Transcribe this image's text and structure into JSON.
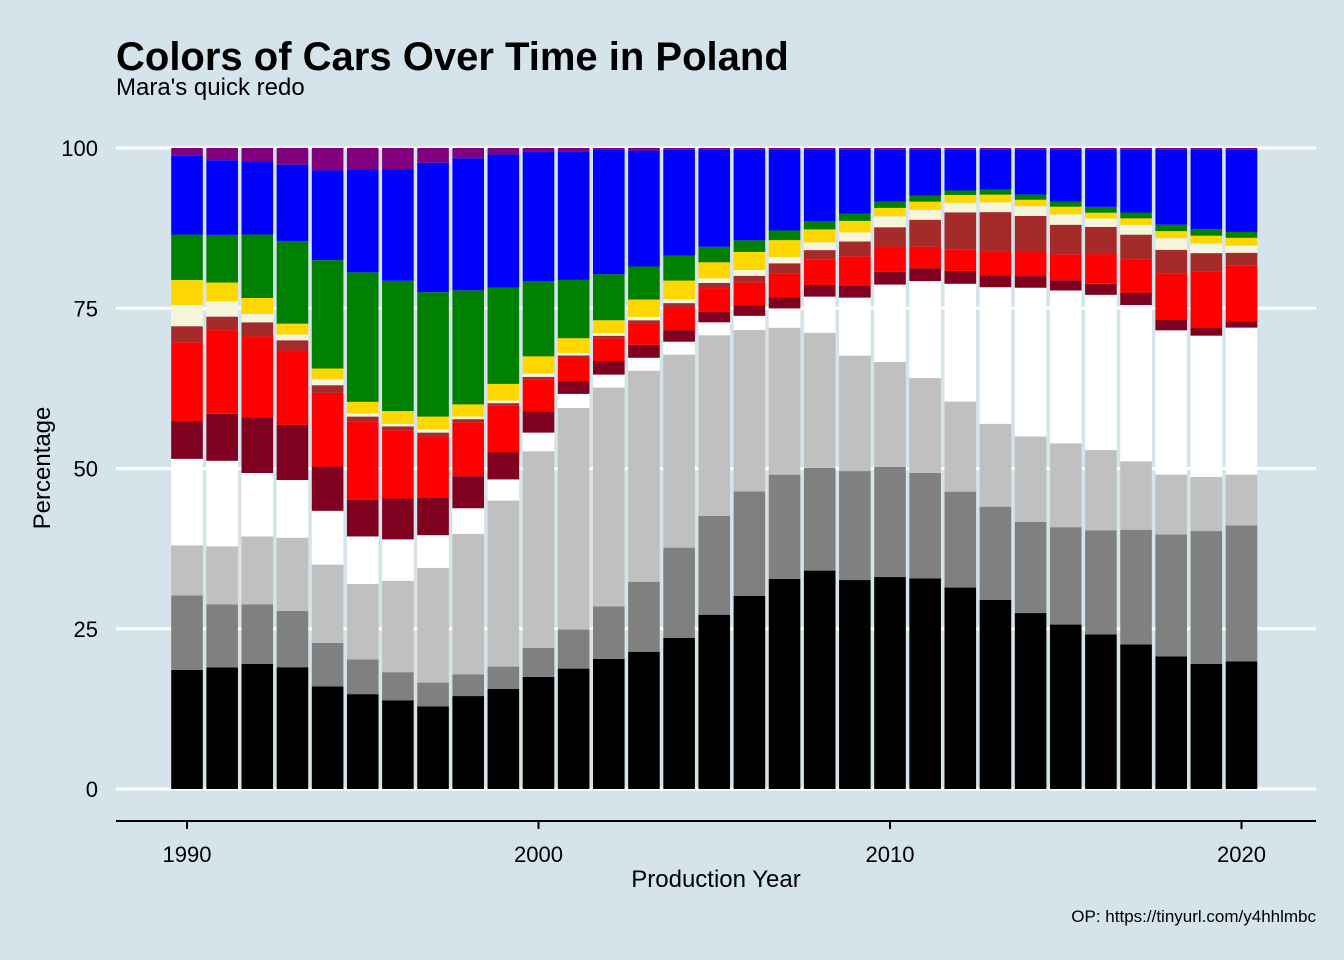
{
  "chart_data": {
    "type": "bar",
    "stacked": true,
    "title": "Colors of Cars Over Time in Poland",
    "subtitle": "Mara's quick redo",
    "xlabel": "Production Year",
    "ylabel": "Percentage",
    "caption": "OP: https://tinyurl.com/y4hhlmbc",
    "xlim": [
      1989,
      2021
    ],
    "ylim": [
      0,
      100
    ],
    "xticks": [
      1990,
      2000,
      2010,
      2020
    ],
    "yticks": [
      0,
      25,
      50,
      75,
      100
    ],
    "grid": "horizontal",
    "legend": "none",
    "categories": [
      1990,
      1991,
      1992,
      1993,
      1994,
      1995,
      1996,
      1997,
      1998,
      1999,
      2000,
      2001,
      2002,
      2003,
      2004,
      2005,
      2006,
      2007,
      2008,
      2009,
      2010,
      2011,
      2012,
      2013,
      2014,
      2015,
      2016,
      2017,
      2018,
      2019,
      2020
    ],
    "series": [
      {
        "color": "#000000",
        "values": [
          18.6,
          18.9,
          19.5,
          19.0,
          16.0,
          14.8,
          13.9,
          12.9,
          14.5,
          15.6,
          17.5,
          18.8,
          20.1,
          21.2,
          23.5,
          27.0,
          29.9,
          32.6,
          33.8,
          32.4,
          32.9,
          32.6,
          31.3,
          29.2,
          27.2,
          25.5,
          23.9,
          22.2,
          20.6,
          19.4,
          19.6
        ]
      },
      {
        "color": "#808080",
        "values": [
          11.6,
          9.8,
          9.3,
          8.8,
          6.8,
          5.4,
          4.4,
          3.7,
          3.4,
          3.5,
          4.5,
          6.1,
          8.1,
          10.8,
          14.0,
          15.3,
          16.2,
          16.2,
          15.9,
          16.9,
          17.1,
          16.3,
          14.9,
          14.4,
          14.1,
          15.1,
          16.1,
          17.6,
          18.9,
          20.6,
          20.9
        ]
      },
      {
        "color": "#c0c0c0",
        "values": [
          7.8,
          9.0,
          10.6,
          11.4,
          12.2,
          11.8,
          14.3,
          17.9,
          21.9,
          25.9,
          30.7,
          34.6,
          33.8,
          32.6,
          30.0,
          28.0,
          25.0,
          22.8,
          20.9,
          17.9,
          16.3,
          14.7,
          14.0,
          12.8,
          13.2,
          13.0,
          12.4,
          10.5,
          9.3,
          8.4,
          7.8
        ]
      },
      {
        "color": "#ffffff",
        "values": [
          13.5,
          13.3,
          9.9,
          9.0,
          8.4,
          7.4,
          6.5,
          5.1,
          4.0,
          3.3,
          2.9,
          2.2,
          2.0,
          2.0,
          2.0,
          2.0,
          2.2,
          3.0,
          5.6,
          9.0,
          12.0,
          15.0,
          18.3,
          21.1,
          23.0,
          23.7,
          24.0,
          24.0,
          22.4,
          21.9,
          22.6
        ]
      },
      {
        "color": "#800020",
        "values": [
          5.9,
          7.3,
          8.7,
          8.6,
          6.9,
          5.7,
          6.4,
          5.8,
          5.0,
          4.2,
          3.3,
          2.0,
          2.1,
          2.0,
          1.8,
          1.6,
          1.6,
          1.7,
          1.8,
          1.8,
          2.0,
          2.0,
          2.0,
          1.8,
          1.8,
          1.6,
          1.7,
          1.9,
          1.7,
          1.3,
          1.0
        ]
      },
      {
        "color": "#ff0000",
        "values": [
          12.3,
          13.0,
          12.6,
          11.6,
          11.5,
          12.2,
          10.7,
          9.6,
          8.4,
          7.3,
          5.0,
          3.6,
          3.5,
          3.3,
          3.6,
          3.7,
          3.6,
          3.7,
          3.9,
          4.6,
          3.9,
          3.3,
          3.3,
          3.7,
          3.8,
          4.0,
          4.6,
          5.1,
          7.1,
          8.7,
          8.5
        ]
      },
      {
        "color": "#a52a2a",
        "values": [
          2.5,
          2.1,
          2.2,
          1.6,
          1.2,
          0.8,
          0.6,
          0.6,
          0.5,
          0.4,
          0.4,
          0.4,
          0.4,
          0.5,
          0.6,
          0.8,
          1.0,
          1.6,
          1.5,
          2.3,
          3.0,
          4.2,
          5.8,
          6.1,
          5.5,
          4.6,
          4.2,
          3.8,
          3.7,
          2.8,
          2.0
        ]
      },
      {
        "color": "#f5f5dc",
        "values": [
          3.3,
          2.4,
          1.3,
          0.9,
          0.9,
          0.5,
          0.4,
          0.5,
          0.4,
          0.4,
          0.5,
          0.4,
          0.4,
          0.5,
          0.6,
          0.7,
          0.9,
          1.0,
          1.2,
          1.4,
          1.7,
          1.5,
          1.5,
          1.5,
          1.5,
          1.6,
          1.3,
          1.5,
          1.8,
          1.5,
          1.1
        ]
      },
      {
        "color": "#ffd700",
        "values": [
          3.9,
          2.9,
          2.5,
          1.7,
          1.7,
          1.8,
          2.0,
          2.0,
          1.9,
          2.6,
          2.7,
          2.3,
          2.0,
          2.7,
          2.9,
          2.5,
          2.8,
          2.6,
          2.0,
          1.8,
          1.3,
          1.3,
          1.2,
          1.2,
          1.0,
          1.2,
          0.9,
          1.0,
          1.1,
          1.2,
          1.2
        ]
      },
      {
        "color": "#008000",
        "values": [
          7.1,
          7.4,
          9.9,
          12.9,
          16.9,
          20.2,
          20.4,
          19.4,
          17.8,
          15.0,
          11.7,
          9.1,
          7.1,
          5.1,
          3.9,
          2.4,
          1.8,
          1.5,
          1.3,
          1.1,
          1.0,
          0.9,
          0.7,
          0.8,
          0.8,
          0.8,
          0.9,
          0.9,
          1.0,
          1.0,
          0.9
        ]
      },
      {
        "color": "#0000ff",
        "values": [
          12.3,
          11.6,
          11.4,
          11.9,
          14.0,
          16.1,
          17.5,
          20.2,
          20.6,
          20.8,
          20.3,
          20.1,
          19.2,
          17.9,
          16.4,
          15.1,
          14.1,
          12.6,
          11.1,
          10.0,
          8.1,
          7.2,
          6.4,
          6.2,
          7.0,
          8.1,
          8.9,
          9.7,
          11.7,
          12.4,
          12.7
        ]
      },
      {
        "color": "#800080",
        "values": [
          1.2,
          1.9,
          2.1,
          2.6,
          3.5,
          3.3,
          3.3,
          2.3,
          1.6,
          1.0,
          0.5,
          0.5,
          0.3,
          0.4,
          0.3,
          0.2,
          0.2,
          0.2,
          0.2,
          0.2,
          0.2,
          0.2,
          0.2,
          0.2,
          0.2,
          0.2,
          0.2,
          0.2,
          0.2,
          0.2,
          0.2
        ]
      }
    ]
  }
}
